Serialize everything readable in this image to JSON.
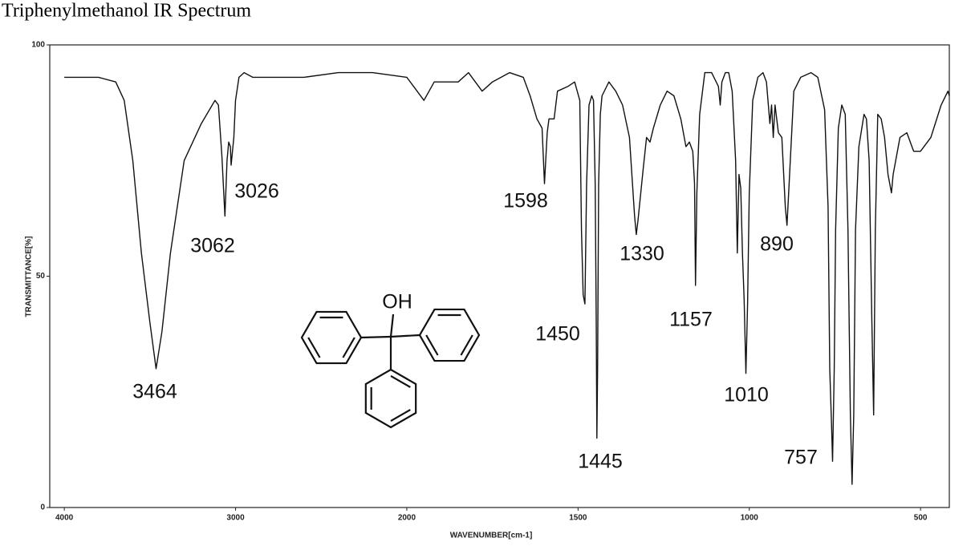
{
  "chart_data": {
    "type": "line",
    "title": "Triphenylmethanol IR Spectrum",
    "xlabel": "WAVENUMBER[cm-1]",
    "ylabel": "TRANSMITTANCE[%]",
    "xlim": [
      4085,
      416
    ],
    "x_scale_change": {
      "at": 2000,
      "factor": 2
    },
    "ylim": [
      0,
      100
    ],
    "xticks": [
      4000,
      3000,
      2000,
      1500,
      1000,
      500
    ],
    "yticks": [
      0,
      50,
      100
    ],
    "structure_label": "OH",
    "annotations": [
      "3464",
      "3062",
      "3026",
      "1598",
      "1450",
      "1445",
      "1330",
      "1157",
      "1010",
      "890",
      "757"
    ],
    "series": [
      {
        "name": "Triphenylmethanol",
        "color": "#111111",
        "x": [
          4000,
          3800,
          3700,
          3650,
          3600,
          3550,
          3500,
          3464,
          3430,
          3380,
          3300,
          3200,
          3120,
          3100,
          3080,
          3062,
          3050,
          3040,
          3030,
          3026,
          3010,
          3000,
          2980,
          2950,
          2900,
          2800,
          2600,
          2400,
          2200,
          2000,
          1980,
          1950,
          1920,
          1850,
          1820,
          1780,
          1750,
          1700,
          1660,
          1640,
          1620,
          1605,
          1598,
          1590,
          1585,
          1570,
          1560,
          1530,
          1510,
          1495,
          1490,
          1485,
          1480,
          1475,
          1468,
          1460,
          1455,
          1450,
          1447,
          1445,
          1443,
          1440,
          1435,
          1430,
          1410,
          1390,
          1370,
          1350,
          1335,
          1330,
          1325,
          1310,
          1300,
          1290,
          1280,
          1260,
          1240,
          1220,
          1200,
          1185,
          1175,
          1165,
          1160,
          1157,
          1153,
          1145,
          1130,
          1110,
          1090,
          1085,
          1080,
          1070,
          1060,
          1050,
          1040,
          1035,
          1030,
          1025,
          1020,
          1015,
          1010,
          1005,
          1000,
          990,
          975,
          960,
          950,
          940,
          935,
          930,
          925,
          915,
          905,
          895,
          890,
          885,
          870,
          850,
          820,
          800,
          780,
          770,
          765,
          760,
          757,
          752,
          748,
          740,
          730,
          720,
          712,
          705,
          700,
          695,
          690,
          680,
          665,
          658,
          650,
          642,
          637,
          632,
          625,
          615,
          605,
          595,
          585,
          580,
          560,
          540,
          520,
          500,
          470,
          440,
          420,
          416
        ],
        "values": [
          93,
          93,
          92,
          88,
          75,
          55,
          40,
          30,
          38,
          55,
          75,
          83,
          88,
          87,
          76,
          63,
          75,
          79,
          78,
          74,
          80,
          88,
          93,
          94,
          93,
          93,
          93,
          94,
          94,
          93,
          91,
          88,
          92,
          92,
          94,
          90,
          92,
          94,
          93,
          89,
          84,
          82,
          70,
          81,
          84,
          84,
          90,
          91,
          92,
          88,
          60,
          46,
          44,
          70,
          87,
          89,
          88,
          70,
          40,
          15,
          30,
          70,
          85,
          89,
          92,
          90,
          87,
          80,
          63,
          59,
          62,
          73,
          80,
          79,
          82,
          87,
          90,
          89,
          84,
          78,
          79,
          77,
          70,
          48,
          68,
          85,
          94,
          94,
          91,
          87,
          92,
          94,
          94,
          90,
          75,
          55,
          72,
          69,
          55,
          45,
          29,
          44,
          68,
          88,
          93,
          94,
          92,
          83,
          87,
          80,
          87,
          81,
          80,
          65,
          61,
          68,
          90,
          93,
          94,
          93,
          86,
          65,
          30,
          18,
          10,
          30,
          60,
          82,
          87,
          85,
          60,
          20,
          5,
          20,
          60,
          78,
          85,
          84,
          75,
          40,
          20,
          60,
          85,
          84,
          80,
          72,
          68,
          72,
          80,
          81,
          77,
          77,
          80,
          87,
          90,
          89
        ]
      }
    ]
  }
}
